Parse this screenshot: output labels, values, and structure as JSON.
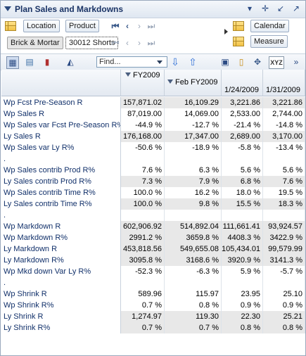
{
  "window": {
    "title": "Plan Sales and Markdowns"
  },
  "header_buttons": {
    "location": "Location",
    "product": "Product",
    "calendar": "Calendar",
    "measure": "Measure"
  },
  "breadcrumb": {
    "location_value": "Brick & Mortar",
    "product_value": "30012 Shorts"
  },
  "toolbar": {
    "find_placeholder": "Find..."
  },
  "columns": [
    {
      "label": "FY2009",
      "marker": "▽"
    },
    {
      "label": "Feb FY2009",
      "marker": "▽"
    },
    {
      "label": "1/24/2009",
      "marker": ""
    },
    {
      "label": "1/31/2009",
      "marker": ""
    }
  ],
  "rows": [
    {
      "label": "Wp Fcst Pre-Season R",
      "v": [
        "157,871.02",
        "16,109.29",
        "3,221.86",
        "3,221.86"
      ],
      "shade": true
    },
    {
      "label": "Wp Sales R",
      "v": [
        "87,019.00",
        "14,069.00",
        "2,533.00",
        "2,744.00"
      ],
      "shade": false
    },
    {
      "label": "Wp Sales var Fcst Pre-Season R%",
      "v": [
        "-44.9 %",
        "-12.7 %",
        "-21.4 %",
        "-14.8 %"
      ],
      "shade": false
    },
    {
      "label": "Ly Sales R",
      "v": [
        "176,168.00",
        "17,347.00",
        "2,689.00",
        "3,170.00"
      ],
      "shade": true
    },
    {
      "label": "Wp Sales var Ly R%",
      "v": [
        "-50.6 %",
        "-18.9 %",
        "-5.8 %",
        "-13.4 %"
      ],
      "shade": false
    },
    {
      "label": ".",
      "v": [
        "",
        "",
        "",
        ""
      ],
      "shade": false
    },
    {
      "label": "Wp Sales contrib Prod R%",
      "v": [
        "7.6 %",
        "6.3 %",
        "5.6 %",
        "5.6 %"
      ],
      "shade": false
    },
    {
      "label": "Ly Sales contrib Prod R%",
      "v": [
        "7.3 %",
        "7.9 %",
        "6.8 %",
        "7.6 %"
      ],
      "shade": true
    },
    {
      "label": "Wp Sales contrib Time R%",
      "v": [
        "100.0 %",
        "16.2 %",
        "18.0 %",
        "19.5 %"
      ],
      "shade": false
    },
    {
      "label": "Ly Sales contrib Time R%",
      "v": [
        "100.0 %",
        "9.8 %",
        "15.5 %",
        "18.3 %"
      ],
      "shade": true
    },
    {
      "label": ".",
      "v": [
        "",
        "",
        "",
        ""
      ],
      "shade": false
    },
    {
      "label": "Wp Markdown R",
      "v": [
        "602,906.92",
        "514,892.04",
        "111,661.41",
        "93,924.57"
      ],
      "shade": true
    },
    {
      "label": "Wp Markdown R%",
      "v": [
        "2991.2 %",
        "3659.8 %",
        "4408.3 %",
        "3422.9 %"
      ],
      "shade": true
    },
    {
      "label": "Ly Markdown R",
      "v": [
        "453,818.56",
        "549,655.08",
        "105,434.01",
        "99,579.99"
      ],
      "shade": true
    },
    {
      "label": "Ly Markdown R%",
      "v": [
        "3095.8 %",
        "3168.6 %",
        "3920.9 %",
        "3141.3 %"
      ],
      "shade": true
    },
    {
      "label": "Wp Mkd down Var Ly R%",
      "v": [
        "-52.3 %",
        "-6.3 %",
        "5.9 %",
        "-5.7 %"
      ],
      "shade": false
    },
    {
      "label": ".",
      "v": [
        "",
        "",
        "",
        ""
      ],
      "shade": false
    },
    {
      "label": "Wp Shrink R",
      "v": [
        "589.96",
        "115.97",
        "23.95",
        "25.10"
      ],
      "shade": false
    },
    {
      "label": "Wp Shrink R%",
      "v": [
        "0.7 %",
        "0.8 %",
        "0.9 %",
        "0.9 %"
      ],
      "shade": false
    },
    {
      "label": "Ly Shrink R",
      "v": [
        "1,274.97",
        "119.30",
        "22.30",
        "25.21"
      ],
      "shade": true
    },
    {
      "label": "Ly Shrink R%",
      "v": [
        "0.7 %",
        "0.7 %",
        "0.8 %",
        "0.8 %"
      ],
      "shade": true
    }
  ]
}
